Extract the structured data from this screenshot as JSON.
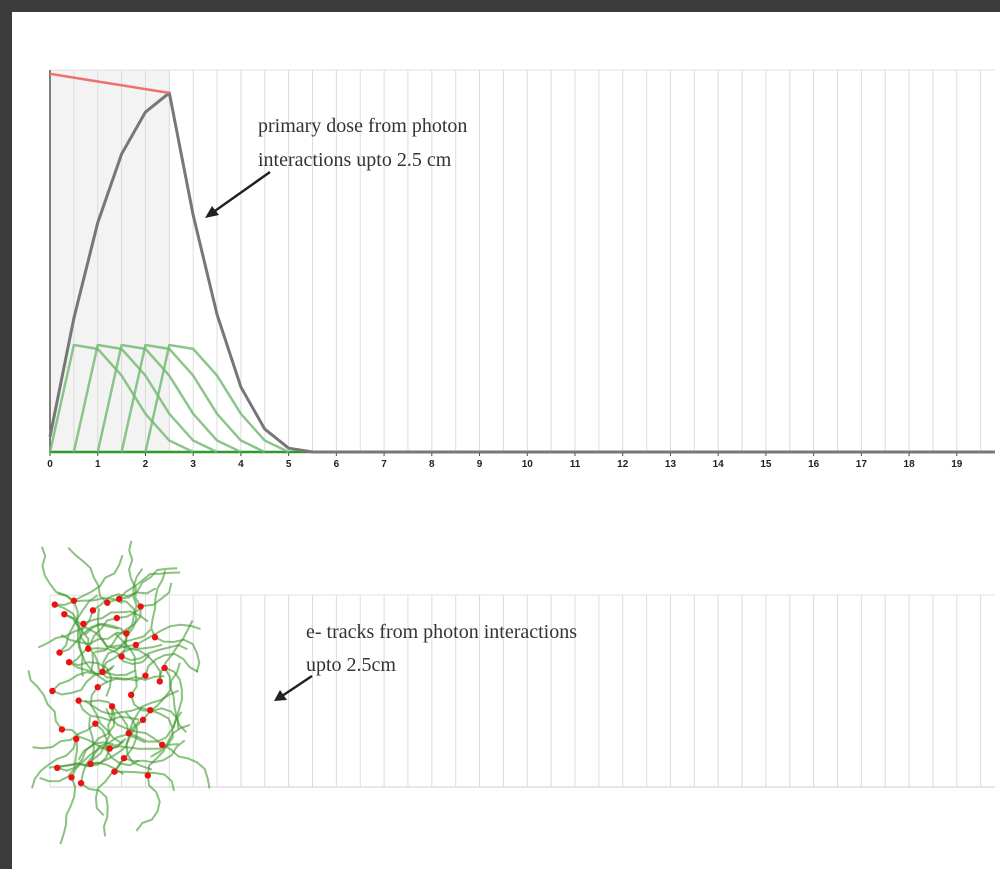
{
  "chart_data": [
    {
      "type": "line",
      "annotation": [
        "primary dose from photon",
        "interactions upto 2.5 cm"
      ],
      "x": [
        0,
        0.5,
        1,
        1.5,
        2,
        2.5,
        3,
        3.5,
        4,
        4.5,
        5,
        5.5,
        6,
        19.8
      ],
      "series": [
        {
          "color": "#2e9a2e",
          "values": [
            0,
            0,
            0,
            0,
            0,
            0,
            0,
            0,
            0,
            0,
            0,
            0,
            0,
            0
          ]
        },
        {
          "color": "#6fb86f",
          "values": [
            0,
            0.28,
            0.27,
            0.2,
            0.1,
            0.03,
            0,
            null,
            null,
            null,
            null,
            null,
            null,
            null
          ]
        },
        {
          "color": "#6fb86f",
          "values": [
            null,
            0,
            0.28,
            0.27,
            0.2,
            0.1,
            0.03,
            0,
            null,
            null,
            null,
            null,
            null,
            null
          ]
        },
        {
          "color": "#6fb86f",
          "values": [
            null,
            null,
            0,
            0.28,
            0.27,
            0.2,
            0.1,
            0.03,
            0,
            null,
            null,
            null,
            null,
            null
          ]
        },
        {
          "color": "#6fb86f",
          "values": [
            null,
            null,
            null,
            0,
            0.28,
            0.27,
            0.2,
            0.1,
            0.03,
            0,
            null,
            null,
            null,
            null
          ]
        },
        {
          "color": "#6fb86f",
          "values": [
            null,
            null,
            null,
            null,
            0,
            0.28,
            0.27,
            0.2,
            0.1,
            0.03,
            0,
            null,
            null,
            null
          ]
        },
        {
          "color": "#777777",
          "values": [
            0.04,
            0.35,
            0.6,
            0.78,
            0.89,
            0.94,
            0.62,
            0.36,
            0.17,
            0.06,
            0.01,
            0,
            0,
            0
          ]
        },
        {
          "color": "#f07070",
          "values": [
            0.99,
            0.98,
            0.97,
            0.96,
            0.95,
            0.94,
            null,
            null,
            null,
            null,
            null,
            null,
            null,
            null
          ]
        }
      ],
      "shade": [
        0,
        2.5
      ],
      "xlim": [
        0,
        19.8
      ],
      "ylim": [
        0,
        1
      ],
      "xticks": [
        0,
        1,
        2,
        3,
        4,
        5,
        6,
        7,
        8,
        9,
        10,
        11,
        12,
        13,
        14,
        15,
        16,
        17,
        18,
        19
      ],
      "grid": true
    },
    {
      "type": "scatter",
      "annotation": [
        "e- tracks from photon interactions",
        "upto 2.5cm"
      ],
      "color": "#ee1111",
      "track_color": "#3d9a2d",
      "x": [
        0.1,
        0.3,
        0.5,
        0.7,
        0.9,
        1.2,
        1.4,
        1.6,
        1.9,
        2.2,
        0.2,
        0.4,
        0.8,
        1.1,
        1.5,
        1.8,
        2.0,
        2.4,
        0.05,
        0.6,
        1.0,
        1.3,
        1.7,
        2.1,
        2.3,
        0.25,
        0.55,
        0.95,
        1.25,
        1.65,
        1.95,
        2.35,
        0.15,
        0.45,
        0.85,
        1.35,
        1.55,
        2.05,
        0.65,
        1.45
      ],
      "values": [
        0.95,
        0.9,
        0.97,
        0.85,
        0.92,
        0.96,
        0.88,
        0.8,
        0.94,
        0.78,
        0.7,
        0.65,
        0.72,
        0.6,
        0.68,
        0.74,
        0.58,
        0.62,
        0.5,
        0.45,
        0.52,
        0.42,
        0.48,
        0.4,
        0.55,
        0.3,
        0.25,
        0.33,
        0.2,
        0.28,
        0.35,
        0.22,
        0.1,
        0.05,
        0.12,
        0.08,
        0.15,
        0.06,
        0.02,
        0.98
      ],
      "xlim": [
        0,
        19.8
      ],
      "ylim": [
        0,
        1
      ],
      "grid": true
    }
  ]
}
